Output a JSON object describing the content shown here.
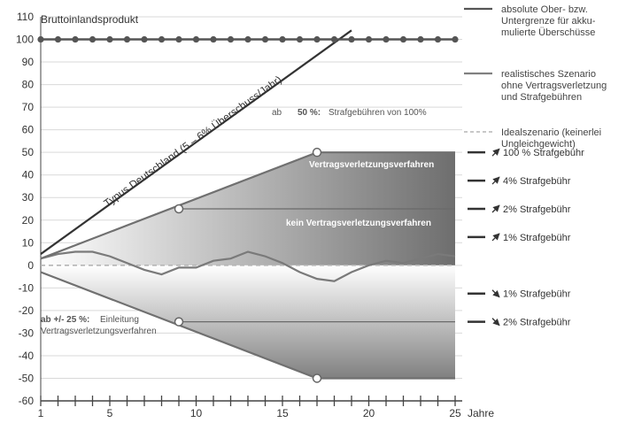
{
  "chart_data": {
    "type": "line",
    "xlabel": "Jahre",
    "x_ticks": [
      "1",
      "5",
      "10",
      "15",
      "20",
      "25"
    ],
    "xlim": [
      1,
      25
    ],
    "ylim": [
      -60,
      110
    ],
    "y_ticks": [
      "110",
      "100",
      "90",
      "80",
      "70",
      "60",
      "50",
      "40",
      "30",
      "20",
      "10",
      "0",
      "-10",
      "-20",
      "-30",
      "-40",
      "-50",
      "-60"
    ],
    "grid": true,
    "annotations": {
      "gdp_label": "Bruttoinlandsprodukt",
      "typus_label": "Typus Deutschland (5 – 6% Überschuss/Jahr)",
      "upper_prefix": "ab",
      "upper_threshold": "50 %:",
      "upper_text": "Strafgebühren von 100%",
      "lower_prefix": "ab +/- 25 %:",
      "lower_text_1": "Einleitung",
      "lower_text_2": "Vertragsverletzungsverfahren",
      "zone_1": "Vertragsverletzungsverfahren",
      "zone_2": "kein Vertragsverletzungsverfahren"
    },
    "legend": [
      {
        "style": "solid-dark",
        "lines": [
          "absolute Ober- bzw.",
          "Untergrenze für akku-",
          "mulierte Überschüsse"
        ]
      },
      {
        "style": "solid-grey",
        "lines": [
          "realistisches Szenario",
          "ohne Vertragsverletzung",
          "und Strafgebühren"
        ]
      },
      {
        "style": "dashed",
        "lines": [
          "Idealszenario (keinerlei",
          "Ungleichgewicht)"
        ]
      }
    ],
    "penalty_labels": [
      {
        "dir": "up",
        "text": "100 % Strafgebühr",
        "y": 50
      },
      {
        "dir": "up",
        "text": "4% Strafgebühr",
        "y": 37.5
      },
      {
        "dir": "up",
        "text": "2% Strafgebühr",
        "y": 25
      },
      {
        "dir": "up",
        "text": "1% Strafgebühr",
        "y": 12.5
      },
      {
        "dir": "down",
        "text": "1% Strafgebühr",
        "y": -12.5
      },
      {
        "dir": "down",
        "text": "2% Strafgebühr",
        "y": -25
      }
    ],
    "series": [
      {
        "name": "Bruttoinlandsprodukt",
        "x": [
          1,
          2,
          3,
          4,
          5,
          6,
          7,
          8,
          9,
          10,
          11,
          12,
          13,
          14,
          15,
          16,
          17,
          18,
          19,
          20,
          21,
          22,
          23,
          24,
          25
        ],
        "y": [
          100,
          100,
          100,
          100,
          100,
          100,
          100,
          100,
          100,
          100,
          100,
          100,
          100,
          100,
          100,
          100,
          100,
          100,
          100,
          100,
          100,
          100,
          100,
          100,
          100
        ]
      },
      {
        "name": "Typus Deutschland (5 – 6% Überschuss/Jahr)",
        "x": [
          1,
          19
        ],
        "y": [
          5,
          104
        ]
      },
      {
        "name": "Obergrenze",
        "x": [
          1,
          17,
          25
        ],
        "y": [
          3,
          50,
          50
        ]
      },
      {
        "name": "Untergrenze",
        "x": [
          1,
          17,
          25
        ],
        "y": [
          -3,
          -50,
          -50
        ]
      },
      {
        "name": "realistisches Szenario",
        "x": [
          1,
          2,
          3,
          4,
          5,
          6,
          7,
          8,
          9,
          10,
          11,
          12,
          13,
          14,
          15,
          16,
          17,
          18,
          19,
          20,
          21,
          22,
          23,
          24,
          25
        ],
        "y": [
          3,
          5,
          6,
          6,
          4,
          1,
          -2,
          -4,
          -1,
          -1,
          2,
          3,
          6,
          4,
          1,
          -3,
          -6,
          -7,
          -3,
          0,
          2,
          1,
          3,
          5,
          4
        ]
      },
      {
        "name": "Idealszenario",
        "x": [
          1,
          25
        ],
        "y": [
          0,
          0
        ]
      }
    ],
    "markers": [
      {
        "x": 9,
        "y": 25
      },
      {
        "x": 9,
        "y": -25
      },
      {
        "x": 17,
        "y": 50
      },
      {
        "x": 17,
        "y": -50
      }
    ],
    "thresholds": [
      25,
      -25
    ]
  }
}
